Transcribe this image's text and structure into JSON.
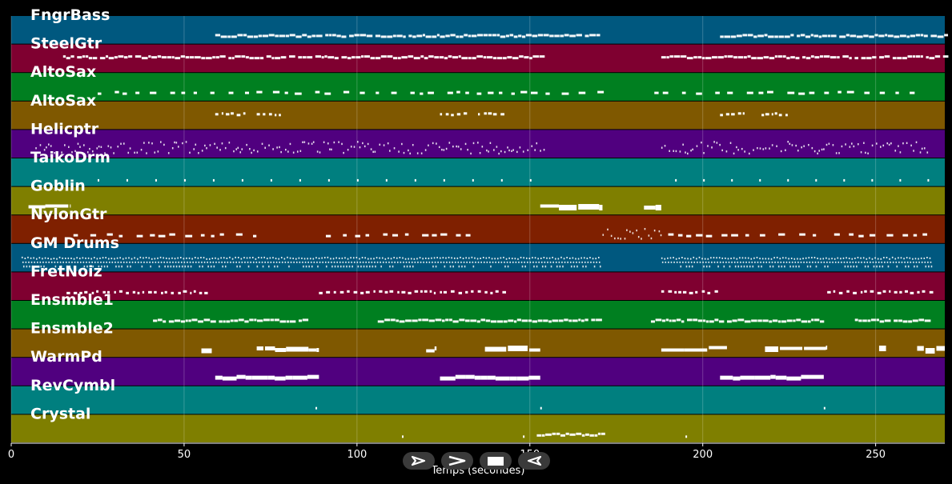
{
  "chart_data": {
    "type": "piano-roll",
    "xlabel": "Temps (secondes)",
    "xlim": [
      0,
      270
    ],
    "x_ticks": [
      0,
      50,
      100,
      150,
      200,
      250
    ],
    "grid": "vertical",
    "tracks": [
      {
        "name": "FngrBass",
        "color": "#00587f",
        "segments": [
          [
            59,
            170,
            "dense-mid"
          ],
          [
            205,
            270,
            "dense-mid"
          ]
        ]
      },
      {
        "name": "SteelGtr",
        "color": "#7f0030",
        "segments": [
          [
            15,
            154,
            "dense-high"
          ],
          [
            188,
            270,
            "dense-high"
          ]
        ]
      },
      {
        "name": "AltoSax",
        "color": "#007f20",
        "segments": [
          [
            25,
            170,
            "dashes"
          ],
          [
            186,
            260,
            "dashes"
          ]
        ]
      },
      {
        "name": "AltoSax",
        "color": "#7f5800",
        "segments": [
          [
            59,
            68,
            "sparse-high"
          ],
          [
            71,
            78,
            "sparse-high"
          ],
          [
            124,
            132,
            "sparse-high"
          ],
          [
            135,
            143,
            "sparse-high"
          ],
          [
            205,
            213,
            "sparse-high"
          ],
          [
            217,
            225,
            "sparse-high"
          ]
        ]
      },
      {
        "name": "Helicptr",
        "color": "#50007f",
        "segments": [
          [
            7,
            154,
            "scatter"
          ],
          [
            188,
            265,
            "scatter"
          ]
        ]
      },
      {
        "name": "TaikoDrm",
        "color": "#007f7f",
        "segments": [
          [
            25,
            150,
            "hits"
          ],
          [
            192,
            265,
            "hits"
          ]
        ]
      },
      {
        "name": "Goblin",
        "color": "#7f7f00",
        "segments": [
          [
            5,
            17,
            "block"
          ],
          [
            153,
            171,
            "block"
          ],
          [
            183,
            188,
            "block"
          ]
        ]
      },
      {
        "name": "NylonGtr",
        "color": "#7f2000",
        "segments": [
          [
            18,
            72,
            "dashes"
          ],
          [
            91,
            136,
            "dashes"
          ],
          [
            171,
            188,
            "scatter"
          ],
          [
            190,
            236,
            "dashes"
          ],
          [
            238,
            266,
            "dashes"
          ]
        ]
      },
      {
        "name": "GM Drums",
        "color": "#00587f",
        "segments": [
          [
            3,
            170,
            "drums"
          ],
          [
            188,
            266,
            "drums"
          ]
        ]
      },
      {
        "name": "FretNoiz",
        "color": "#7f0030",
        "segments": [
          [
            16,
            58,
            "sparse-mid"
          ],
          [
            89,
            143,
            "sparse-mid"
          ],
          [
            188,
            205,
            "sparse-mid"
          ],
          [
            236,
            266,
            "sparse-mid"
          ]
        ]
      },
      {
        "name": "Ensmble1",
        "color": "#007f20",
        "segments": [
          [
            41,
            86,
            "dense-mid"
          ],
          [
            106,
            170,
            "dense-mid"
          ],
          [
            185,
            235,
            "dense-mid"
          ],
          [
            244,
            266,
            "dense-mid"
          ]
        ]
      },
      {
        "name": "Ensmble2",
        "color": "#7f5800",
        "segments": [
          [
            55,
            58,
            "block"
          ],
          [
            71,
            89,
            "block"
          ],
          [
            120,
            123,
            "block"
          ],
          [
            137,
            153,
            "block"
          ],
          [
            188,
            207,
            "block"
          ],
          [
            218,
            236,
            "block"
          ],
          [
            251,
            253,
            "block"
          ],
          [
            262,
            270,
            "block"
          ]
        ]
      },
      {
        "name": "WarmPd",
        "color": "#50007f",
        "segments": [
          [
            59,
            89,
            "pad"
          ],
          [
            124,
            153,
            "pad"
          ],
          [
            205,
            235,
            "pad"
          ]
        ]
      },
      {
        "name": "RevCymbl",
        "color": "#007f7f",
        "segments": [
          [
            88,
            88,
            "hits"
          ],
          [
            153,
            153,
            "hits"
          ],
          [
            235,
            235,
            "hits"
          ]
        ]
      },
      {
        "name": "Crystal",
        "color": "#7f7f00",
        "segments": [
          [
            113,
            113,
            "hits"
          ],
          [
            148,
            148,
            "hits"
          ],
          [
            152,
            171,
            "dense-mid"
          ],
          [
            195,
            195,
            "hits"
          ]
        ]
      }
    ]
  },
  "transport": {
    "play_icon": "play-outline-icon",
    "ff_icon": "fast-forward-icon",
    "stop_icon": "stop-icon",
    "rewind_icon": "rewind-icon"
  }
}
